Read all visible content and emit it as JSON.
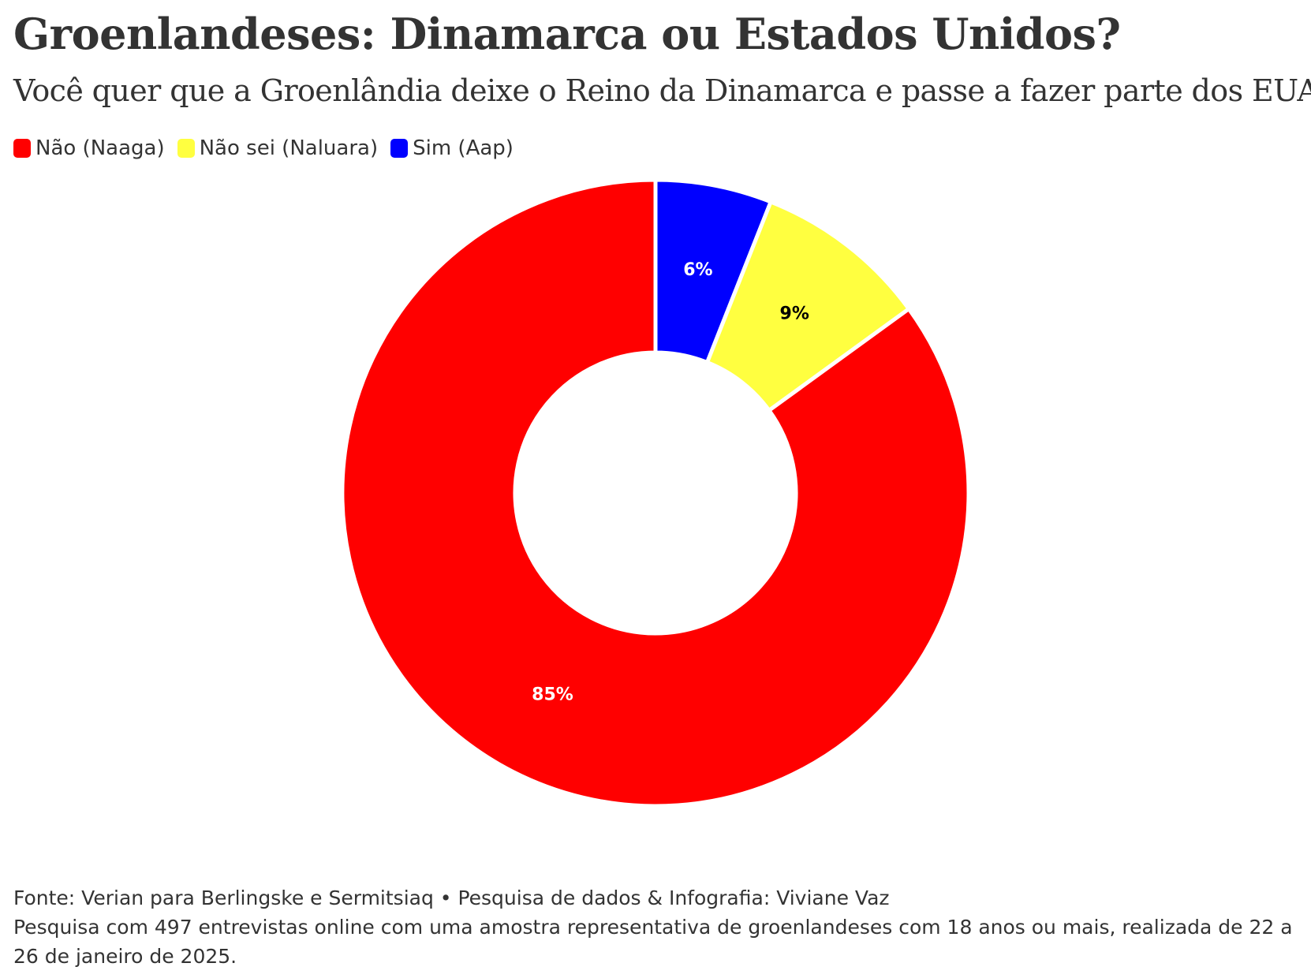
{
  "title": "Groenlandeses: Dinamarca ou Estados Unidos?",
  "subtitle": "Você quer que a Groenlândia deixe o Reino da Dinamarca e passe a fazer parte dos EUA?",
  "legend": [
    {
      "label": "Não (Naaga)",
      "color": "#ff0000"
    },
    {
      "label": "Não sei (Naluara)",
      "color": "#ffff40"
    },
    {
      "label": "Sim (Aap)",
      "color": "#0000ff"
    }
  ],
  "chart_data": {
    "type": "pie",
    "variant": "donut",
    "legend_position": "top-left",
    "slices": [
      {
        "name": "Sim (Aap)",
        "value": 6,
        "label": "6%",
        "color": "#0000ff",
        "label_color": "#ffffff"
      },
      {
        "name": "Não sei (Naluara)",
        "value": 9,
        "label": "9%",
        "color": "#ffff40",
        "label_color": "#000000"
      },
      {
        "name": "Não (Naaga)",
        "value": 85,
        "label": "85%",
        "color": "#ff0000",
        "label_color": "#ffffff"
      }
    ]
  },
  "footer": {
    "source": "Fonte: Verian para Berlingske e Sermitsiaq • Pesquisa de dados & Infografia: Viviane Vaz",
    "note": "Pesquisa com 497 entrevistas online com uma amostra representativa de groenlandeses com 18 anos ou mais, realizada de 22 a 26 de janeiro de 2025."
  }
}
